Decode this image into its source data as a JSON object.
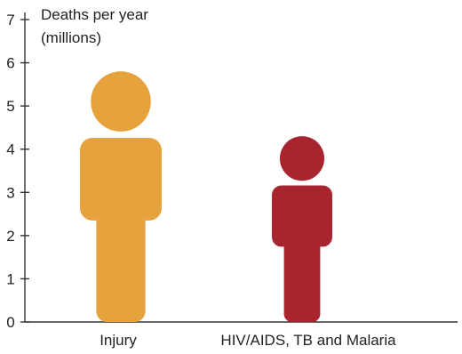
{
  "chart_data": {
    "type": "bar",
    "ylabel_lines": [
      "Deaths per year",
      "(millions)"
    ],
    "ylim": [
      0,
      7
    ],
    "yticks": [
      0,
      1,
      2,
      3,
      4,
      5,
      6,
      7
    ],
    "categories": [
      "Injury",
      "HIV/AIDS, TB and Malaria"
    ],
    "values": [
      5.8,
      4.3
    ],
    "colors": [
      "#E6A23C",
      "#A8242E"
    ],
    "grid": false,
    "legend": "none"
  }
}
